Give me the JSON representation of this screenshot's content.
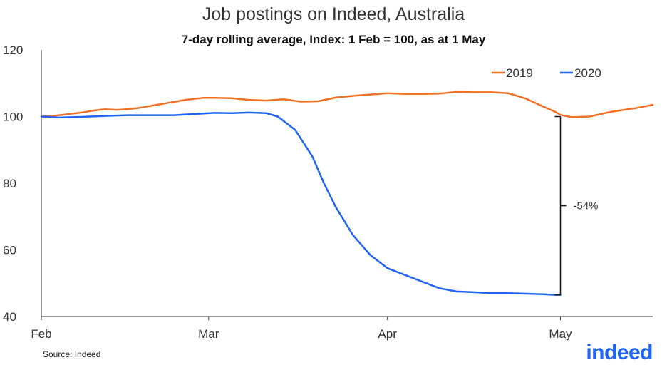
{
  "header": {
    "title": "Job postings on Indeed, Australia",
    "subtitle": "7-day rolling average, Index: 1 Feb = 100, as at 1 May"
  },
  "footer": {
    "source": "Source: Indeed",
    "logo_text": "indeed"
  },
  "colors": {
    "series_2019": "#f07126",
    "series_2020": "#2164f3",
    "axis": "#333333",
    "logo": "#2164f3"
  },
  "chart_data": {
    "type": "line",
    "title": "Job postings on Indeed, Australia",
    "subtitle": "7-day rolling average, Index: 1 Feb = 100, as at 1 May",
    "xlabel": "",
    "ylabel": "",
    "ylim": [
      40,
      120
    ],
    "yticks": [
      40,
      60,
      80,
      100,
      120
    ],
    "x_tick_labels": [
      "Feb",
      "Mar",
      "Apr",
      "May"
    ],
    "x_tick_days": [
      1,
      30,
      61,
      91
    ],
    "xlim_days": [
      1,
      107
    ],
    "grid": false,
    "legend_position": "top-right",
    "annotation": {
      "text": "-54%",
      "day": 91,
      "from": 100,
      "to": 46.5
    },
    "series": [
      {
        "name": "2019",
        "color": "#f07126",
        "days": [
          1,
          3,
          5,
          8,
          10,
          12,
          14,
          16,
          18,
          20,
          22,
          24,
          26,
          29,
          31,
          34,
          37,
          40,
          43,
          46,
          49,
          52,
          55,
          58,
          61,
          64,
          67,
          70,
          73,
          76,
          79,
          82,
          85,
          88,
          90,
          91,
          93,
          96,
          100,
          104,
          107
        ],
        "values": [
          100,
          100.2,
          100.6,
          101.2,
          101.8,
          102.2,
          102.0,
          102.2,
          102.6,
          103.2,
          103.8,
          104.4,
          105.0,
          105.6,
          105.6,
          105.5,
          105.0,
          104.8,
          105.2,
          104.5,
          104.6,
          105.7,
          106.2,
          106.6,
          107.0,
          106.8,
          106.8,
          106.9,
          107.4,
          107.3,
          107.3,
          107.0,
          105.4,
          103.0,
          101.5,
          100.5,
          99.8,
          100.0,
          101.5,
          102.5,
          103.5
        ]
      },
      {
        "name": "2020",
        "color": "#2164f3",
        "days": [
          1,
          4,
          8,
          12,
          16,
          20,
          24,
          28,
          31,
          34,
          37,
          40,
          42,
          45,
          48,
          50,
          52,
          55,
          58,
          61,
          64,
          67,
          70,
          73,
          76,
          79,
          82,
          84,
          86,
          88,
          90,
          91
        ],
        "values": [
          100,
          99.7,
          99.9,
          100.2,
          100.4,
          100.4,
          100.4,
          100.8,
          101.1,
          101.0,
          101.2,
          101.0,
          100.0,
          96.0,
          88.0,
          80.0,
          73.0,
          64.5,
          58.5,
          54.5,
          52.5,
          50.5,
          48.5,
          47.5,
          47.3,
          47.0,
          47.0,
          46.9,
          46.8,
          46.7,
          46.5,
          46.5
        ]
      }
    ]
  }
}
